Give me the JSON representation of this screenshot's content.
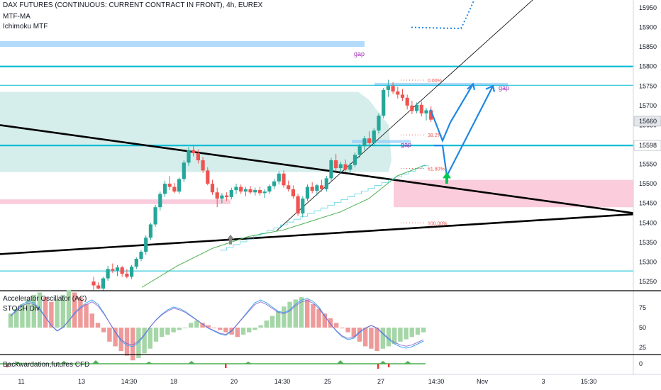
{
  "header": {
    "title": "DAX FUTURES (CONTINUOUS: CURRENT CONTRACT IN FRONT), 4h, EUREX",
    "indicators": [
      "MTF-MA",
      "Ichimoku MTF"
    ]
  },
  "colors": {
    "up": "#26a69a",
    "down": "#ef5350",
    "cyan_level": "#00bcd4",
    "cloud": "#b2dfdb",
    "pink_zone": "#f8bbd0",
    "gap_box": "#90caf9",
    "projection": "#1e88e5",
    "fib": "#ef5350",
    "ma_green": "#4caf50",
    "price_label_bg": "#e3e6ea"
  },
  "chart_data": [
    {
      "type": "candlestick",
      "title": "DAX FUTURES (CONTINUOUS: CURRENT CONTRACT IN FRONT), 4h, EUREX",
      "ylim": [
        15230,
        15970
      ],
      "y_ticks": [
        15250,
        15300,
        15350,
        15400,
        15450,
        15500,
        15550,
        15600,
        15650,
        15700,
        15750,
        15800,
        15850,
        15900,
        15950
      ],
      "x_ticks": [
        "11",
        "13",
        "14:30",
        "18",
        "20",
        "14:30",
        "25",
        "27",
        "14:30",
        "Nov",
        "3",
        "15:30"
      ],
      "price_labels": [
        {
          "value": "15660",
          "price": 15660
        },
        {
          "value": "15598",
          "price": 15598
        }
      ],
      "horizontal_levels": [
        15800,
        15752,
        15598,
        15277
      ],
      "fib_levels": [
        {
          "label": "0.00%",
          "price": 15765
        },
        {
          "label": "38.2%",
          "price": 15625
        },
        {
          "label": "61.80%",
          "price": 15539
        },
        {
          "label": "100.00%",
          "price": 15400
        }
      ],
      "gap_labels": [
        "gap",
        "gap",
        "gap"
      ],
      "series_candles": [
        [
          15250,
          15262,
          15228,
          15240
        ],
        [
          15240,
          15248,
          15230,
          15232
        ],
        [
          15232,
          15262,
          15226,
          15258
        ],
        [
          15258,
          15290,
          15252,
          15282
        ],
        [
          15282,
          15296,
          15272,
          15278
        ],
        [
          15278,
          15292,
          15264,
          15286
        ],
        [
          15286,
          15290,
          15262,
          15270
        ],
        [
          15270,
          15282,
          15258,
          15262
        ],
        [
          15262,
          15292,
          15256,
          15288
        ],
        [
          15288,
          15312,
          15282,
          15308
        ],
        [
          15308,
          15330,
          15302,
          15326
        ],
        [
          15326,
          15368,
          15318,
          15362
        ],
        [
          15362,
          15400,
          15356,
          15396
        ],
        [
          15396,
          15446,
          15390,
          15440
        ],
        [
          15440,
          15480,
          15432,
          15474
        ],
        [
          15474,
          15508,
          15466,
          15500
        ],
        [
          15500,
          15520,
          15484,
          15492
        ],
        [
          15492,
          15502,
          15476,
          15480
        ],
        [
          15480,
          15516,
          15474,
          15512
        ],
        [
          15512,
          15560,
          15504,
          15554
        ],
        [
          15554,
          15594,
          15546,
          15586
        ],
        [
          15586,
          15600,
          15570,
          15578
        ],
        [
          15578,
          15588,
          15552,
          15560
        ],
        [
          15560,
          15568,
          15528,
          15534
        ],
        [
          15534,
          15542,
          15496,
          15500
        ],
        [
          15500,
          15510,
          15472,
          15478
        ],
        [
          15478,
          15490,
          15440,
          15462
        ],
        [
          15462,
          15476,
          15450,
          15470
        ],
        [
          15470,
          15478,
          15456,
          15466
        ],
        [
          15466,
          15490,
          15460,
          15484
        ],
        [
          15484,
          15500,
          15474,
          15492
        ],
        [
          15492,
          15498,
          15474,
          15480
        ],
        [
          15480,
          15492,
          15468,
          15486
        ],
        [
          15486,
          15494,
          15474,
          15478
        ],
        [
          15478,
          15490,
          15470,
          15484
        ],
        [
          15484,
          15492,
          15470,
          15476
        ],
        [
          15476,
          15486,
          15464,
          15480
        ],
        [
          15480,
          15498,
          15474,
          15494
        ],
        [
          15494,
          15512,
          15486,
          15506
        ],
        [
          15506,
          15532,
          15498,
          15526
        ],
        [
          15526,
          15534,
          15490,
          15496
        ],
        [
          15496,
          15508,
          15480,
          15486
        ],
        [
          15486,
          15496,
          15462,
          15468
        ],
        [
          15468,
          15474,
          15418,
          15424
        ],
        [
          15424,
          15468,
          15414,
          15462
        ],
        [
          15462,
          15498,
          15456,
          15492
        ],
        [
          15492,
          15504,
          15476,
          15482
        ],
        [
          15482,
          15500,
          15470,
          15496
        ],
        [
          15496,
          15510,
          15480,
          15486
        ],
        [
          15486,
          15520,
          15480,
          15514
        ],
        [
          15514,
          15566,
          15508,
          15560
        ],
        [
          15560,
          15576,
          15532,
          15540
        ],
        [
          15540,
          15556,
          15528,
          15550
        ],
        [
          15550,
          15562,
          15532,
          15536
        ],
        [
          15536,
          15554,
          15528,
          15548
        ],
        [
          15548,
          15580,
          15542,
          15574
        ],
        [
          15574,
          15602,
          15566,
          15596
        ],
        [
          15596,
          15622,
          15586,
          15616
        ],
        [
          15616,
          15634,
          15598,
          15604
        ],
        [
          15604,
          15642,
          15596,
          15636
        ],
        [
          15636,
          15680,
          15628,
          15674
        ],
        [
          15674,
          15745,
          15668,
          15740
        ],
        [
          15740,
          15766,
          15722,
          15750
        ],
        [
          15750,
          15760,
          15730,
          15736
        ],
        [
          15736,
          15748,
          15718,
          15728
        ],
        [
          15728,
          15742,
          15712,
          15720
        ],
        [
          15720,
          15728,
          15690,
          15700
        ],
        [
          15700,
          15712,
          15678,
          15686
        ],
        [
          15686,
          15708,
          15680,
          15702
        ],
        [
          15702,
          15710,
          15672,
          15680
        ],
        [
          15680,
          15694,
          15662,
          15688
        ],
        [
          15688,
          15698,
          15658,
          15664
        ]
      ]
    },
    {
      "type": "bar",
      "title": "Accelerator Oscillator (AC)",
      "subtitle": "STOCH Div",
      "y_ticks": [
        25,
        50,
        75
      ],
      "values": [
        6,
        8,
        10,
        12,
        14,
        15,
        13,
        11,
        12,
        14,
        16,
        15,
        13,
        10,
        6,
        2,
        -2,
        -6,
        -8,
        -10,
        -12,
        -14,
        -13,
        -11,
        -9,
        -6,
        -4,
        -3,
        -2,
        -1,
        0,
        2,
        3,
        2,
        1,
        0,
        -1,
        -2,
        -3,
        -4,
        -3,
        -2,
        -1,
        1,
        3,
        5,
        7,
        9,
        11,
        12,
        13,
        12,
        10,
        8,
        6,
        4,
        2,
        0,
        -2,
        -4,
        -6,
        -8,
        -9,
        -10,
        -9,
        -8,
        -7,
        -6,
        -5,
        -4,
        -3,
        -2
      ],
      "stoch": [
        62,
        70,
        78,
        82,
        80,
        72,
        60,
        48,
        40,
        45,
        55,
        66,
        74,
        80,
        84,
        78,
        66,
        52,
        38,
        26,
        20,
        18,
        24,
        34,
        46,
        56,
        64,
        70,
        74,
        72,
        68,
        62,
        56,
        50,
        44,
        40,
        36,
        34,
        40,
        50,
        60,
        70,
        80,
        84,
        80,
        74,
        68,
        66,
        70,
        78,
        84,
        86,
        82,
        74,
        62,
        50,
        40,
        32,
        28,
        30,
        38,
        44,
        48,
        44,
        36,
        28,
        22,
        18,
        16,
        18,
        22,
        26
      ]
    },
    {
      "type": "area",
      "title": "Backwardation,futures CFD",
      "y_ticks": [
        0
      ]
    }
  ]
}
